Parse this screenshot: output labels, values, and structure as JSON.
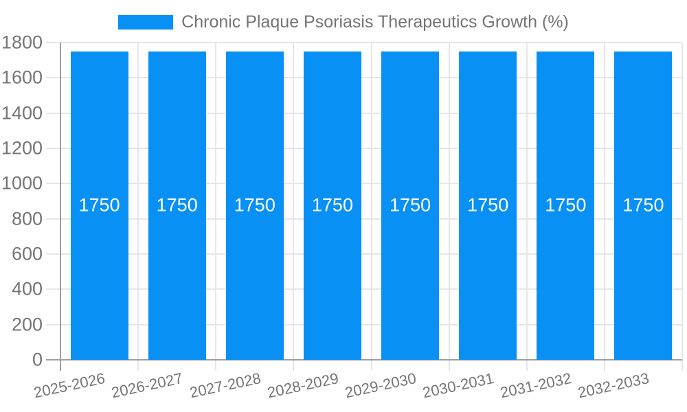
{
  "legend": {
    "series_label": "Chronic Plaque Psoriasis Therapeutics Growth (%)"
  },
  "colors": {
    "bar": "#0890f5",
    "grid": "#e6e6e6",
    "axis": "#9e9e9e",
    "text": "#757575",
    "value_label": "#ffffff",
    "background": "#ffffff"
  },
  "chart_data": {
    "type": "bar",
    "title": "Chronic Plaque Psoriasis Therapeutics Growth (%)",
    "categories": [
      "2025-2026",
      "2026-2027",
      "2027-2028",
      "2028-2029",
      "2029-2030",
      "2030-2031",
      "2031-2032",
      "2032-2033"
    ],
    "values": [
      1750,
      1750,
      1750,
      1750,
      1750,
      1750,
      1750,
      1750
    ],
    "bar_labels": [
      "1750",
      "1750",
      "1750",
      "1750",
      "1750",
      "1750",
      "1750",
      "1750"
    ],
    "xlabel": "",
    "ylabel": "",
    "ylim": [
      0,
      1800
    ],
    "y_ticks": [
      0,
      200,
      400,
      600,
      800,
      1000,
      1200,
      1400,
      1600,
      1800
    ],
    "grid": true,
    "legend_position": "top",
    "x_tick_rotation_deg": -12
  }
}
